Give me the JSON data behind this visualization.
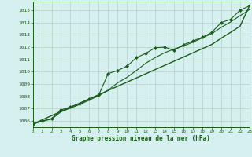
{
  "background_color": "#d6f0f0",
  "plot_bg_color": "#d6f0f0",
  "grid_color": "#b8d8c8",
  "line_color": "#1a5c1a",
  "xlabel": "Graphe pression niveau de la mer (hPa)",
  "xlim": [
    0,
    23
  ],
  "ylim": [
    1005.5,
    1015.7
  ],
  "yticks": [
    1006,
    1007,
    1008,
    1009,
    1010,
    1011,
    1012,
    1013,
    1014,
    1015
  ],
  "xticks": [
    0,
    1,
    2,
    3,
    4,
    5,
    6,
    7,
    8,
    9,
    10,
    11,
    12,
    13,
    14,
    15,
    16,
    17,
    18,
    19,
    20,
    21,
    22,
    23
  ],
  "hours": [
    0,
    1,
    2,
    3,
    4,
    5,
    6,
    7,
    8,
    9,
    10,
    11,
    12,
    13,
    14,
    15,
    16,
    17,
    18,
    19,
    20,
    21,
    22,
    23
  ],
  "pressure_zigzag": [
    1005.75,
    1006.0,
    1006.2,
    1006.9,
    1007.15,
    1007.4,
    1007.8,
    1008.1,
    1009.85,
    1010.1,
    1010.45,
    1011.15,
    1011.5,
    1011.95,
    1012.0,
    1011.75,
    1012.2,
    1012.5,
    1012.8,
    1013.2,
    1014.0,
    1014.25,
    1015.0,
    1015.35
  ],
  "pressure_smooth": [
    1005.75,
    1006.0,
    1006.15,
    1006.75,
    1007.05,
    1007.35,
    1007.7,
    1008.05,
    1008.5,
    1009.1,
    1009.55,
    1010.1,
    1010.7,
    1011.15,
    1011.55,
    1011.85,
    1012.1,
    1012.4,
    1012.75,
    1013.1,
    1013.6,
    1014.05,
    1014.55,
    1015.05
  ],
  "pressure_trend": [
    1005.75,
    1006.1,
    1006.44,
    1006.78,
    1007.12,
    1007.46,
    1007.8,
    1008.14,
    1008.48,
    1008.82,
    1009.16,
    1009.5,
    1009.84,
    1010.18,
    1010.52,
    1010.86,
    1011.2,
    1011.54,
    1011.88,
    1012.22,
    1012.72,
    1013.2,
    1013.7,
    1015.35
  ]
}
